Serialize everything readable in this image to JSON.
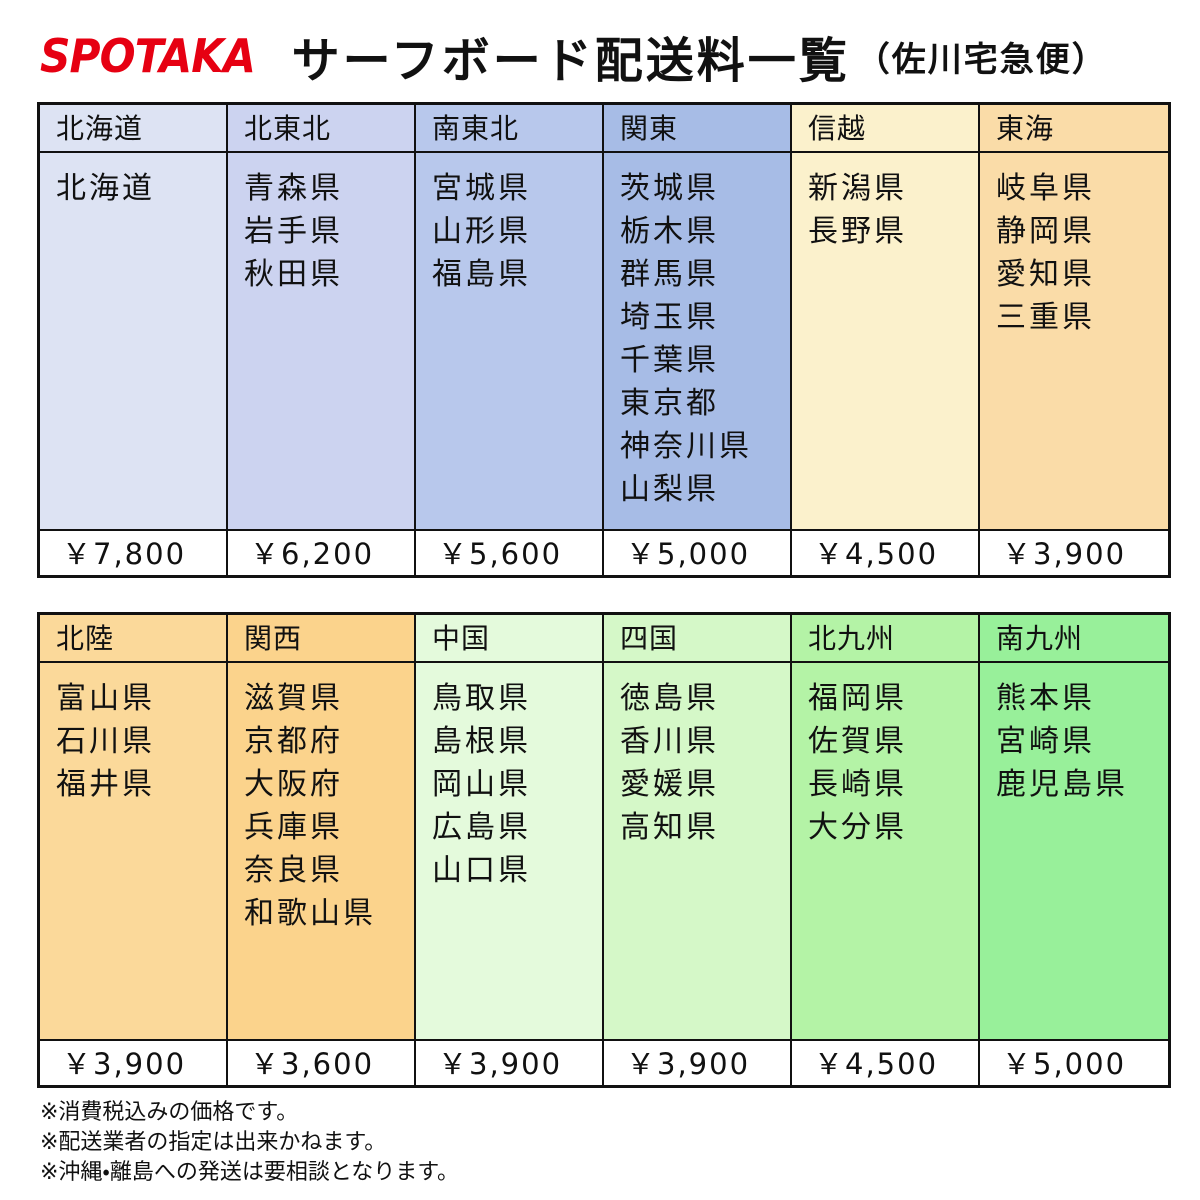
{
  "header": {
    "brand": "SPOTAKA",
    "title": "サーフボード配送料一覧",
    "subtitle": "（佐川宅急便）"
  },
  "tables": [
    {
      "regions": [
        {
          "name": "北海道",
          "color": "#dde3f3",
          "prefectures": [
            "北海道"
          ],
          "price": "￥7,800"
        },
        {
          "name": "北東北",
          "color": "#ccd3f0",
          "prefectures": [
            "青森県",
            "岩手県",
            "秋田県"
          ],
          "price": "￥6,200"
        },
        {
          "name": "南東北",
          "color": "#b8c8ec",
          "prefectures": [
            "宮城県",
            "山形県",
            "福島県"
          ],
          "price": "￥5,600"
        },
        {
          "name": "関東",
          "color": "#a7bce6",
          "prefectures": [
            "茨城県",
            "栃木県",
            "群馬県",
            "埼玉県",
            "千葉県",
            "東京都",
            "神奈川県",
            "山梨県"
          ],
          "price": "￥5,000"
        },
        {
          "name": "信越",
          "color": "#fbf1cc",
          "prefectures": [
            "新潟県",
            "長野県"
          ],
          "price": "￥4,500"
        },
        {
          "name": "東海",
          "color": "#fadca8",
          "prefectures": [
            "岐阜県",
            "静岡県",
            "愛知県",
            "三重県"
          ],
          "price": "￥3,900"
        }
      ]
    },
    {
      "regions": [
        {
          "name": "北陸",
          "color": "#fbd99a",
          "prefectures": [
            "富山県",
            "石川県",
            "福井県"
          ],
          "price": "￥3,900"
        },
        {
          "name": "関西",
          "color": "#fbd38c",
          "prefectures": [
            "滋賀県",
            "京都府",
            "大阪府",
            "兵庫県",
            "奈良県",
            "和歌山県"
          ],
          "price": "￥3,600"
        },
        {
          "name": "中国",
          "color": "#e4fadc",
          "prefectures": [
            "鳥取県",
            "島根県",
            "岡山県",
            "広島県",
            "山口県"
          ],
          "price": "￥3,900"
        },
        {
          "name": "四国",
          "color": "#d5f8c8",
          "prefectures": [
            "徳島県",
            "香川県",
            "愛媛県",
            "高知県"
          ],
          "price": "￥3,900"
        },
        {
          "name": "北九州",
          "color": "#b4f3a6",
          "prefectures": [
            "福岡県",
            "佐賀県",
            "長崎県",
            "大分県"
          ],
          "price": "￥4,500"
        },
        {
          "name": "南九州",
          "color": "#98f09a",
          "prefectures": [
            "熊本県",
            "宮崎県",
            "鹿児島県"
          ],
          "price": "￥5,000"
        }
      ]
    }
  ],
  "notes": [
    "※消費税込みの価格です。",
    "※配送業者の指定は出来かねます。",
    "※沖縄・離島への発送は要相談となります。"
  ]
}
